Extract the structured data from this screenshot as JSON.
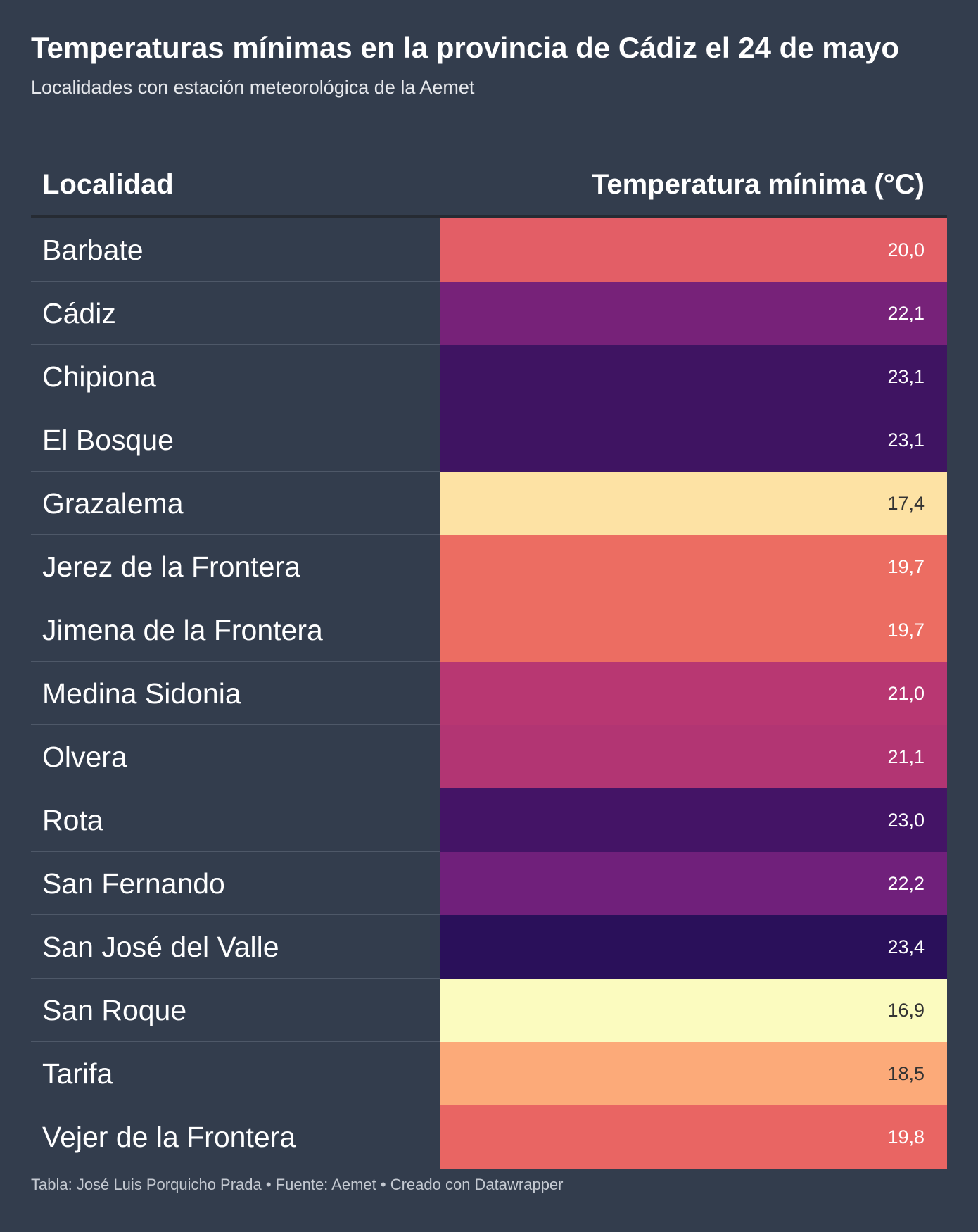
{
  "chart_data": {
    "type": "table",
    "title": "Temperaturas mínimas en la provincia de Cádiz el 24 de mayo",
    "subtitle": "Localidades con estación meteorológica de la Aemet",
    "columns": [
      "Localidad",
      "Temperatura mínima (°C)"
    ],
    "rows": [
      {
        "localidad": "Barbate",
        "value": 20.0,
        "label": "20,0",
        "color": "#e35e66",
        "text_color": "#ffffff"
      },
      {
        "localidad": "Cádiz",
        "value": 22.1,
        "label": "22,1",
        "color": "#772279",
        "text_color": "#ffffff"
      },
      {
        "localidad": "Chipiona",
        "value": 23.1,
        "label": "23,1",
        "color": "#3f1462",
        "text_color": "#ffffff"
      },
      {
        "localidad": "El Bosque",
        "value": 23.1,
        "label": "23,1",
        "color": "#3f1462",
        "text_color": "#ffffff"
      },
      {
        "localidad": "Grazalema",
        "value": 17.4,
        "label": "17,4",
        "color": "#fde2a4",
        "text_color": "#333333"
      },
      {
        "localidad": "Jerez de la Frontera",
        "value": 19.7,
        "label": "19,7",
        "color": "#ec6d62",
        "text_color": "#ffffff"
      },
      {
        "localidad": "Jimena de la Frontera",
        "value": 19.7,
        "label": "19,7",
        "color": "#ec6d62",
        "text_color": "#ffffff"
      },
      {
        "localidad": "Medina Sidonia",
        "value": 21.0,
        "label": "21,0",
        "color": "#b83772",
        "text_color": "#ffffff"
      },
      {
        "localidad": "Olvera",
        "value": 21.1,
        "label": "21,1",
        "color": "#b23573",
        "text_color": "#ffffff"
      },
      {
        "localidad": "Rota",
        "value": 23.0,
        "label": "23,0",
        "color": "#441466",
        "text_color": "#ffffff"
      },
      {
        "localidad": "San Fernando",
        "value": 22.2,
        "label": "22,2",
        "color": "#70207b",
        "text_color": "#ffffff"
      },
      {
        "localidad": "San José del Valle",
        "value": 23.4,
        "label": "23,4",
        "color": "#2a105a",
        "text_color": "#ffffff"
      },
      {
        "localidad": "San Roque",
        "value": 16.9,
        "label": "16,9",
        "color": "#fbfbbf",
        "text_color": "#333333"
      },
      {
        "localidad": "Tarifa",
        "value": 18.5,
        "label": "18,5",
        "color": "#fcaa79",
        "text_color": "#333333"
      },
      {
        "localidad": "Vejer de la Frontera",
        "value": 19.8,
        "label": "19,8",
        "color": "#e96563",
        "text_color": "#ffffff"
      }
    ]
  },
  "footer": "Tabla: José Luis Porquicho Prada • Fuente: Aemet • Creado con Datawrapper"
}
